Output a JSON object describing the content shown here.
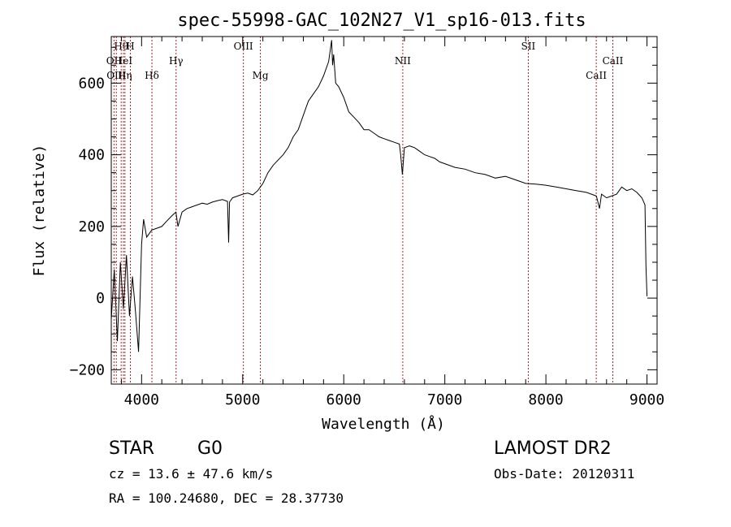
{
  "chart_data": {
    "type": "line",
    "title": "spec-55998-GAC_102N27_V1_sp16-013.fits",
    "xlabel": "Wavelength (Å)",
    "ylabel": "Flux (relative)",
    "xlim": [
      3700,
      9100
    ],
    "ylim": [
      -240,
      730
    ],
    "x_ticks": [
      4000,
      5000,
      6000,
      7000,
      8000,
      9000
    ],
    "y_ticks": [
      -200,
      0,
      200,
      400,
      600
    ],
    "grid": false,
    "series": [
      {
        "x": [
          3700,
          3730,
          3760,
          3790,
          3820,
          3850,
          3880,
          3910,
          3940,
          3970,
          4000,
          4020,
          4050,
          4100,
          4150,
          4200,
          4250,
          4300,
          4340,
          4360,
          4400,
          4450,
          4500,
          4550,
          4600,
          4650,
          4700,
          4750,
          4800,
          4850,
          4861,
          4870,
          4900,
          4950,
          5000,
          5050,
          5100,
          5150,
          5200,
          5250,
          5300,
          5350,
          5400,
          5450,
          5500,
          5550,
          5600,
          5650,
          5700,
          5750,
          5800,
          5850,
          5880,
          5890,
          5900,
          5920,
          5950,
          6000,
          6050,
          6100,
          6150,
          6200,
          6250,
          6300,
          6350,
          6400,
          6450,
          6500,
          6550,
          6563,
          6580,
          6600,
          6650,
          6700,
          6750,
          6800,
          6850,
          6900,
          6950,
          7000,
          7100,
          7200,
          7300,
          7400,
          7500,
          7600,
          7700,
          7800,
          7900,
          8000,
          8100,
          8200,
          8300,
          8400,
          8450,
          8500,
          8530,
          8550,
          8600,
          8650,
          8700,
          8750,
          8800,
          8850,
          8900,
          8950,
          8980,
          8990,
          9000
        ],
        "y": [
          -60,
          80,
          -120,
          100,
          -30,
          120,
          -50,
          60,
          -40,
          -150,
          150,
          220,
          170,
          190,
          195,
          200,
          215,
          230,
          240,
          200,
          240,
          250,
          255,
          260,
          265,
          262,
          268,
          272,
          275,
          270,
          155,
          268,
          280,
          285,
          290,
          293,
          288,
          300,
          320,
          350,
          370,
          385,
          400,
          420,
          450,
          470,
          510,
          550,
          570,
          590,
          620,
          660,
          720,
          650,
          680,
          600,
          590,
          560,
          520,
          505,
          490,
          470,
          470,
          460,
          450,
          445,
          440,
          435,
          430,
          400,
          345,
          420,
          425,
          420,
          410,
          400,
          395,
          390,
          380,
          375,
          365,
          360,
          350,
          345,
          335,
          340,
          330,
          320,
          318,
          315,
          310,
          305,
          300,
          295,
          290,
          285,
          250,
          290,
          280,
          285,
          290,
          310,
          300,
          305,
          295,
          280,
          260,
          90,
          5
        ]
      }
    ],
    "line_markers": [
      {
        "label": "Hθ",
        "x": 3798,
        "row": 1
      },
      {
        "label": "H",
        "x": 3889,
        "row": 1
      },
      {
        "label": "OII",
        "x": 3727,
        "row": 2
      },
      {
        "label": "HeI",
        "x": 3820,
        "row": 2
      },
      {
        "label": "OIII",
        "x": 3750,
        "row": 3
      },
      {
        "label": "Hη",
        "x": 3835,
        "row": 3
      },
      {
        "label": "Hδ",
        "x": 4102,
        "row": 3
      },
      {
        "label": "Hγ",
        "x": 4341,
        "row": 2
      },
      {
        "label": "OIII",
        "x": 5007,
        "row": 1
      },
      {
        "label": "Mg",
        "x": 5175,
        "row": 3
      },
      {
        "label": "NII",
        "x": 6584,
        "row": 2
      },
      {
        "label": "SII",
        "x": 7826,
        "row": 1
      },
      {
        "label": "CaII",
        "x": 8498,
        "row": 3
      },
      {
        "label": "CaII",
        "x": 8662,
        "row": 2
      }
    ]
  },
  "info": {
    "object_type": "STAR",
    "subclass": "G0",
    "survey": "LAMOST DR2",
    "cz": "cz = 13.6 ± 47.6 km/s",
    "obs_date": "Obs-Date: 20120311",
    "coords": "RA = 100.24680, DEC =  28.37730"
  }
}
